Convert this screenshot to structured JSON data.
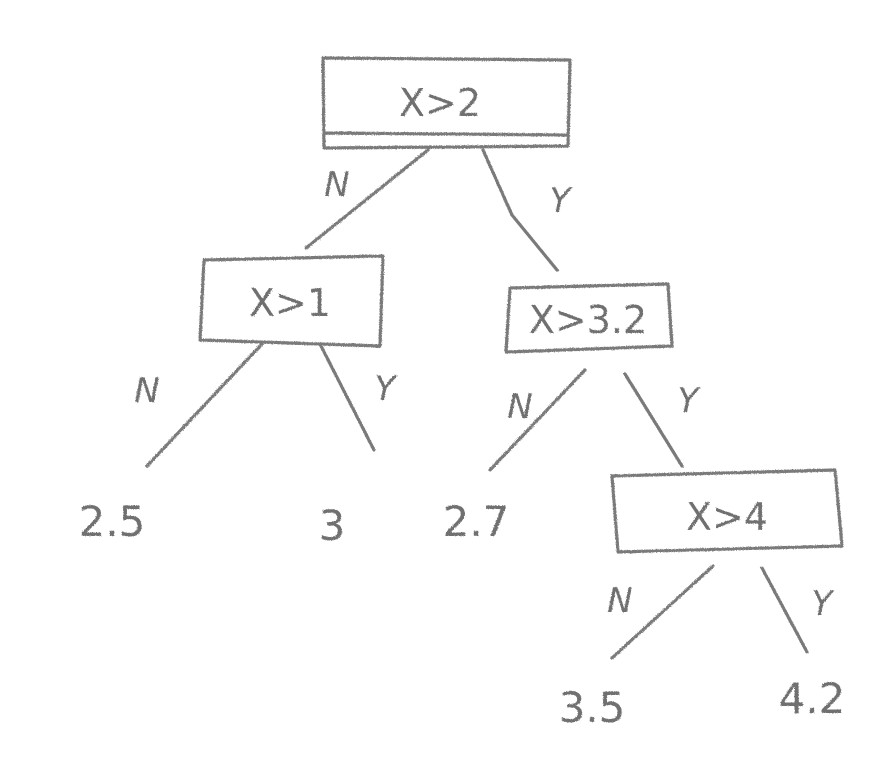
{
  "colors": {
    "stroke": "#7a7a7a",
    "text": "#6f6f6f",
    "background": "#ffffff"
  },
  "tree": {
    "root": {
      "label": "X>2",
      "no_branch": "N",
      "yes_branch": "Y"
    },
    "left_split": {
      "label": "X>1",
      "no_branch": "N",
      "yes_branch": "Y",
      "no_value": "2.5",
      "yes_value": "3"
    },
    "right_split": {
      "label": "X>3.2",
      "no_branch": "N",
      "yes_branch": "Y",
      "no_value": "2.7"
    },
    "deep_split": {
      "label": "X>4",
      "no_branch": "N",
      "yes_branch": "Y",
      "no_value": "3.5",
      "yes_value": "4.2"
    }
  }
}
